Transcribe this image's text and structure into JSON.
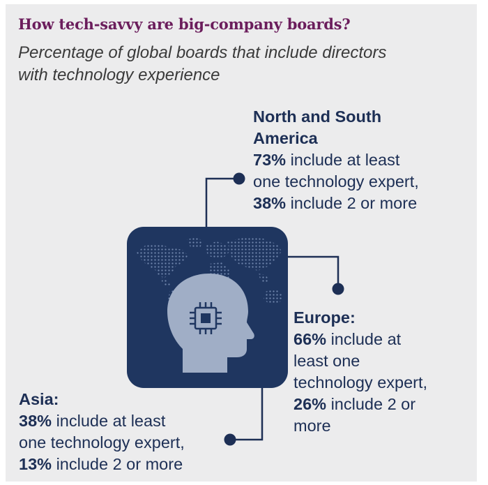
{
  "title": "How tech-savvy are big-company boards?",
  "subtitle": "Percentage of global boards that include directors with technology experience",
  "colors": {
    "title": "#6b1d5c",
    "text": "#1d2f55",
    "navy": "#1f3660",
    "background": "#ececed",
    "head": "#a0aec6"
  },
  "regions": {
    "americas": {
      "name_line1": "North and South",
      "name_line2": "America",
      "pct_one": "73%",
      "text_one_a": " include at least",
      "text_one_b": "one technology expert,",
      "pct_two": "38%",
      "text_two": " include 2 or more"
    },
    "europe": {
      "name": "Europe:",
      "pct_one": "66%",
      "text_one_a": " include at",
      "text_one_b": "least one",
      "text_one_c": "technology expert,",
      "pct_two": "26%",
      "text_two_a": " include 2 or",
      "text_two_b": "more"
    },
    "asia": {
      "name": "Asia:",
      "pct_one": "38%",
      "text_one_a": " include at least",
      "text_one_b": "one technology expert,",
      "pct_two": "13%",
      "text_two": " include 2 or more"
    }
  },
  "icons": {
    "center": "head-with-chip-icon",
    "map": "world-map-icon"
  }
}
